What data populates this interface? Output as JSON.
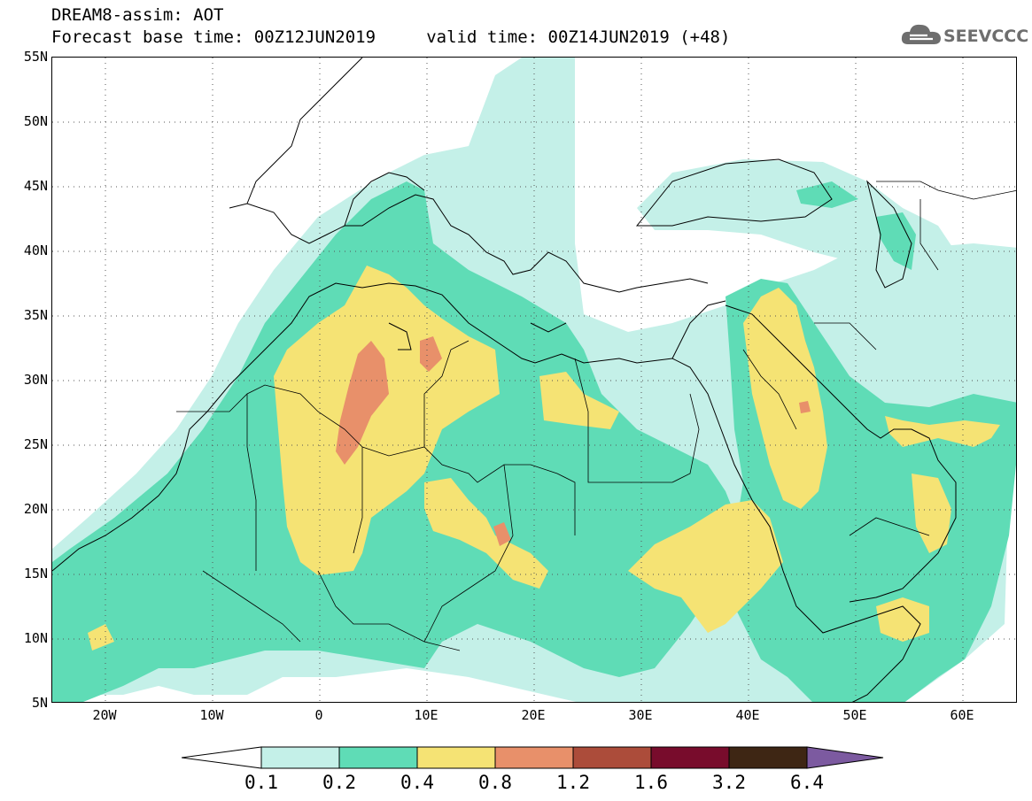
{
  "header": {
    "title_line1": "DREAM8-assim: AOT",
    "title_line2": "Forecast base time: 00Z12JUN2019     valid time: 00Z14JUN2019 (+48)"
  },
  "logo": {
    "text": "SEEVCCC",
    "icon": "cloud-icon",
    "color": "#6e6e6e"
  },
  "axes": {
    "lat_labels": [
      "55N",
      "50N",
      "45N",
      "40N",
      "35N",
      "30N",
      "25N",
      "20N",
      "15N",
      "10N",
      "5N"
    ],
    "lon_labels": [
      "20W",
      "10W",
      "0",
      "10E",
      "20E",
      "30E",
      "40E",
      "50E",
      "60E"
    ]
  },
  "colorbar": {
    "labels": [
      "0.1",
      "0.2",
      "0.4",
      "0.8",
      "1.2",
      "1.6",
      "3.2",
      "6.4"
    ],
    "colors": [
      "#ffffff",
      "#c4f0e8",
      "#5fdcb6",
      "#f5e374",
      "#e8906a",
      "#ac4c3a",
      "#780c2c",
      "#3e2614",
      "#7c5aa0"
    ]
  }
}
